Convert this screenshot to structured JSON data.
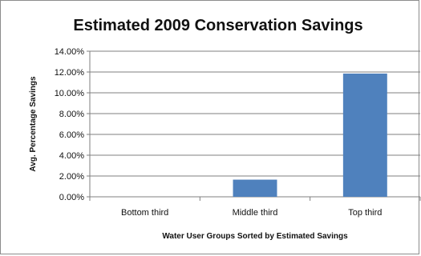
{
  "chart_data": {
    "type": "bar",
    "title": "Estimated 2009 Conservation Savings",
    "xlabel": "Water User Groups Sorted by Estimated Savings",
    "ylabel": "Avg. Percentage Savings",
    "categories": [
      "Bottom third",
      "Middle third",
      "Top third"
    ],
    "values": [
      0.0,
      1.65,
      11.85
    ],
    "ylim": [
      0,
      14
    ],
    "yticks": [
      "0.00%",
      "2.00%",
      "4.00%",
      "6.00%",
      "8.00%",
      "10.00%",
      "12.00%",
      "14.00%"
    ],
    "grid": true,
    "legend": "none",
    "bar_color": "#4f81bd"
  }
}
